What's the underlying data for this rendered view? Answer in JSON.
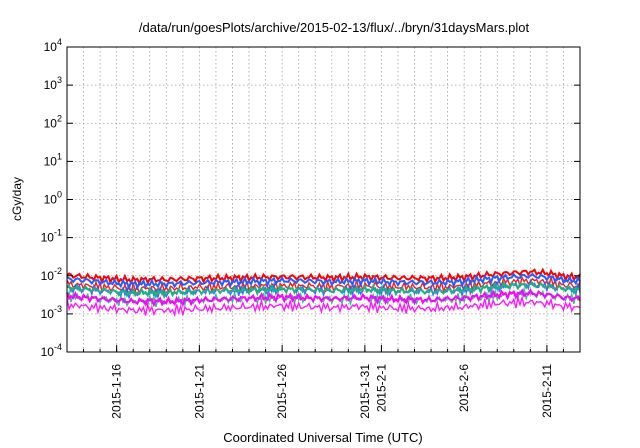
{
  "chart_data": {
    "type": "line",
    "title": "/data/run/goesPlots/archive/2015-02-13/flux/../bryn/31daysMars.plot",
    "xlabel": "Coordinated Universal Time (UTC)",
    "ylabel": "cGy/day",
    "yscale": "log",
    "ylim": [
      0.0001,
      10000
    ],
    "xlim": [
      "2015-01-13",
      "2015-02-13"
    ],
    "grid": true,
    "y_ticks": [
      {
        "base": "10",
        "exp": "-4",
        "value": 0.0001
      },
      {
        "base": "10",
        "exp": "-3",
        "value": 0.001
      },
      {
        "base": "10",
        "exp": "-2",
        "value": 0.01
      },
      {
        "base": "10",
        "exp": "-1",
        "value": 0.1
      },
      {
        "base": "10",
        "exp": "0",
        "value": 1
      },
      {
        "base": "10",
        "exp": "1",
        "value": 10
      },
      {
        "base": "10",
        "exp": "2",
        "value": 100
      },
      {
        "base": "10",
        "exp": "3",
        "value": 1000
      },
      {
        "base": "10",
        "exp": "4",
        "value": 10000
      }
    ],
    "x_ticks": [
      {
        "label": "2015-1-16",
        "date": "2015-01-16"
      },
      {
        "label": "2015-1-21",
        "date": "2015-01-21"
      },
      {
        "label": "2015-1-26",
        "date": "2015-01-26"
      },
      {
        "label": "2015-1-31",
        "date": "2015-01-31"
      },
      {
        "label": "2015-2-1",
        "date": "2015-02-01"
      },
      {
        "label": "2015-2-6",
        "date": "2015-02-06"
      },
      {
        "label": "2015-2-11",
        "date": "2015-02-11"
      }
    ],
    "x": [
      "2015-01-13",
      "2015-01-14",
      "2015-01-15",
      "2015-01-16",
      "2015-01-17",
      "2015-01-18",
      "2015-01-19",
      "2015-01-20",
      "2015-01-21",
      "2015-01-22",
      "2015-01-23",
      "2015-01-24",
      "2015-01-25",
      "2015-01-26",
      "2015-01-27",
      "2015-01-28",
      "2015-01-29",
      "2015-01-30",
      "2015-01-31",
      "2015-02-01",
      "2015-02-02",
      "2015-02-03",
      "2015-02-04",
      "2015-02-05",
      "2015-02-06",
      "2015-02-07",
      "2015-02-08",
      "2015-02-09",
      "2015-02-10",
      "2015-02-11",
      "2015-02-12",
      "2015-02-13"
    ],
    "series": [
      {
        "color": "#ff0000",
        "values": [
          0.0105,
          0.0095,
          0.0088,
          0.0082,
          0.0078,
          0.008,
          0.0079,
          0.0083,
          0.0085,
          0.0087,
          0.0088,
          0.009,
          0.0092,
          0.0094,
          0.0093,
          0.0091,
          0.0089,
          0.0092,
          0.0094,
          0.009,
          0.0088,
          0.0087,
          0.0086,
          0.0088,
          0.0092,
          0.0102,
          0.0112,
          0.012,
          0.0128,
          0.0118,
          0.0098,
          0.0092
        ]
      },
      {
        "color": "#1f5fff",
        "values": [
          0.0082,
          0.0076,
          0.007,
          0.0064,
          0.0061,
          0.0062,
          0.0061,
          0.0064,
          0.0066,
          0.0068,
          0.0069,
          0.0071,
          0.0073,
          0.0075,
          0.0074,
          0.0072,
          0.007,
          0.0072,
          0.0074,
          0.007,
          0.0068,
          0.0067,
          0.0066,
          0.0068,
          0.0072,
          0.008,
          0.0088,
          0.0094,
          0.01,
          0.0092,
          0.0078,
          0.0073
        ]
      },
      {
        "color": "#20b080",
        "values": [
          0.0049,
          0.0045,
          0.0042,
          0.0038,
          0.0036,
          0.0037,
          0.0036,
          0.0038,
          0.0039,
          0.0041,
          0.0042,
          0.0043,
          0.0044,
          0.0045,
          0.0044,
          0.0043,
          0.0041,
          0.0043,
          0.0044,
          0.0042,
          0.004,
          0.004,
          0.0039,
          0.0041,
          0.0043,
          0.0047,
          0.0052,
          0.0056,
          0.0058,
          0.0054,
          0.0046,
          0.0043
        ]
      },
      {
        "color": "#ff00ff",
        "values": [
          0.003,
          0.0027,
          0.0025,
          0.0023,
          0.0021,
          0.0022,
          0.0021,
          0.0022,
          0.0023,
          0.0024,
          0.0025,
          0.0026,
          0.0027,
          0.0028,
          0.0027,
          0.0026,
          0.0025,
          0.0026,
          0.0027,
          0.0025,
          0.0024,
          0.0024,
          0.0023,
          0.0025,
          0.0026,
          0.0029,
          0.0032,
          0.0034,
          0.0035,
          0.0032,
          0.0027,
          0.0025
        ]
      }
    ],
    "colors": {
      "axis": "#000000",
      "grid": "#a0a0a0"
    }
  }
}
